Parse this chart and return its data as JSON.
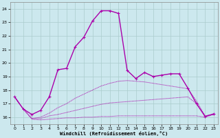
{
  "xlabel": "Windchill (Refroidissement éolien,°C)",
  "background_color": "#cce8ee",
  "grid_color": "#aacccc",
  "line_color": "#aa00aa",
  "xlim": [
    -0.5,
    23.5
  ],
  "ylim": [
    15.5,
    24.5
  ],
  "yticks": [
    16,
    17,
    18,
    19,
    20,
    21,
    22,
    23,
    24
  ],
  "xticks": [
    0,
    1,
    2,
    3,
    4,
    5,
    6,
    7,
    8,
    9,
    10,
    11,
    12,
    13,
    14,
    15,
    16,
    17,
    18,
    19,
    20,
    21,
    22,
    23
  ],
  "series": [
    {
      "x": [
        0,
        1,
        2,
        3,
        4,
        5,
        6,
        7,
        8,
        9,
        10,
        11,
        12,
        13,
        14,
        15,
        16,
        17,
        18,
        19,
        20,
        21,
        22,
        23
      ],
      "y": [
        17.5,
        16.6,
        15.85,
        15.8,
        15.85,
        15.9,
        15.95,
        15.95,
        16.0,
        16.0,
        16.05,
        16.05,
        16.1,
        16.1,
        16.1,
        16.1,
        16.1,
        16.1,
        16.1,
        16.1,
        16.1,
        16.1,
        16.0,
        16.2
      ],
      "style": "dotted",
      "marker": false
    },
    {
      "x": [
        0,
        1,
        2,
        3,
        4,
        5,
        6,
        7,
        8,
        9,
        10,
        11,
        12,
        13,
        14,
        15,
        16,
        17,
        18,
        19,
        20,
        21,
        22,
        23
      ],
      "y": [
        17.5,
        16.6,
        15.9,
        15.9,
        16.1,
        16.2,
        16.35,
        16.5,
        16.65,
        16.8,
        16.95,
        17.05,
        17.1,
        17.15,
        17.2,
        17.25,
        17.3,
        17.35,
        17.4,
        17.45,
        17.5,
        17.0,
        16.1,
        16.2
      ],
      "style": "dotted",
      "marker": false
    },
    {
      "x": [
        0,
        1,
        2,
        3,
        4,
        5,
        6,
        7,
        8,
        9,
        10,
        11,
        12,
        13,
        14,
        15,
        16,
        17,
        18,
        19,
        20,
        21,
        22,
        23
      ],
      "y": [
        17.5,
        16.6,
        15.9,
        16.0,
        16.3,
        16.7,
        17.0,
        17.4,
        17.7,
        18.0,
        18.3,
        18.5,
        18.65,
        18.7,
        18.65,
        18.6,
        18.5,
        18.4,
        18.3,
        18.2,
        18.1,
        17.2,
        16.1,
        16.2
      ],
      "style": "dotted",
      "marker": false
    },
    {
      "x": [
        0,
        1,
        2,
        3,
        4,
        5,
        6,
        7,
        8,
        9,
        10,
        11,
        12,
        13,
        14,
        15,
        16,
        17,
        18,
        19,
        20,
        21,
        22,
        23
      ],
      "y": [
        17.5,
        16.6,
        16.2,
        16.5,
        17.5,
        19.5,
        19.6,
        21.2,
        21.9,
        23.1,
        23.85,
        23.85,
        23.65,
        19.45,
        18.85,
        19.3,
        19.0,
        19.1,
        19.2,
        19.2,
        18.15,
        17.0,
        16.05,
        16.25
      ],
      "style": "solid",
      "marker": true
    }
  ]
}
